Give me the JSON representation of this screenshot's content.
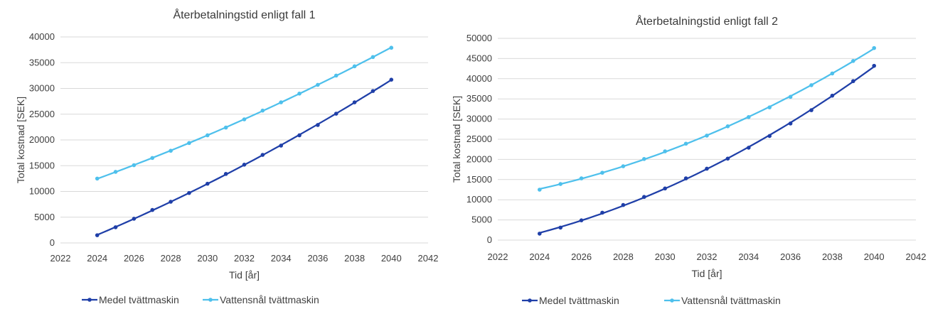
{
  "chart_data": [
    {
      "type": "scatter",
      "title": "Återbetalningstid enligt fall 1",
      "xlabel": "Tid [år]",
      "ylabel": "Total kostnad [SEK]",
      "xlim": [
        2022,
        2042
      ],
      "ylim": [
        0,
        40000
      ],
      "xticks": [
        2022,
        2024,
        2026,
        2028,
        2030,
        2032,
        2034,
        2036,
        2038,
        2040,
        2042
      ],
      "yticks": [
        0,
        5000,
        10000,
        15000,
        20000,
        25000,
        30000,
        35000,
        40000
      ],
      "grid": "horizontal",
      "legend_position": "bottom",
      "trendline": true,
      "x": [
        2024,
        2025,
        2026,
        2027,
        2028,
        2029,
        2030,
        2031,
        2032,
        2033,
        2034,
        2035,
        2036,
        2037,
        2038,
        2039,
        2040
      ],
      "series": [
        {
          "name": "Medel tvättmaskin",
          "color": "#1f3fa8",
          "values": [
            1500,
            3050,
            4700,
            6400,
            8000,
            9700,
            11500,
            13400,
            15200,
            17100,
            18900,
            20900,
            22900,
            25100,
            27300,
            29500,
            31700
          ]
        },
        {
          "name": "Vattensnål tvättmaskin",
          "color": "#4ec0ec",
          "values": [
            12500,
            13800,
            15100,
            16500,
            17900,
            19400,
            20900,
            22400,
            24000,
            25700,
            27300,
            29000,
            30700,
            32500,
            34300,
            36100,
            37900
          ]
        }
      ]
    },
    {
      "type": "scatter",
      "title": "Återbetalningstid enligt fall 2",
      "xlabel": "Tid [år]",
      "ylabel": "Total kostnad [SEK]",
      "xlim": [
        2022,
        2042
      ],
      "ylim": [
        0,
        50000
      ],
      "xticks": [
        2022,
        2024,
        2026,
        2028,
        2030,
        2032,
        2034,
        2036,
        2038,
        2040,
        2042
      ],
      "yticks": [
        0,
        5000,
        10000,
        15000,
        20000,
        25000,
        30000,
        35000,
        40000,
        45000,
        50000
      ],
      "grid": "horizontal",
      "legend_position": "bottom",
      "trendline": true,
      "x": [
        2024,
        2025,
        2026,
        2027,
        2028,
        2029,
        2030,
        2031,
        2032,
        2033,
        2034,
        2035,
        2036,
        2037,
        2038,
        2039,
        2040
      ],
      "series": [
        {
          "name": "Medel tvättmaskin",
          "color": "#1f3fa8",
          "values": [
            1600,
            3100,
            4900,
            6800,
            8700,
            10700,
            12800,
            15300,
            17700,
            20200,
            22900,
            25800,
            28900,
            32200,
            35800,
            39400,
            43200
          ]
        },
        {
          "name": "Vattensnål tvättmaskin",
          "color": "#4ec0ec",
          "values": [
            12500,
            13900,
            15300,
            16700,
            18300,
            20100,
            22000,
            23900,
            25900,
            28200,
            30500,
            32900,
            35500,
            38400,
            41300,
            44400,
            47600
          ]
        }
      ]
    }
  ]
}
